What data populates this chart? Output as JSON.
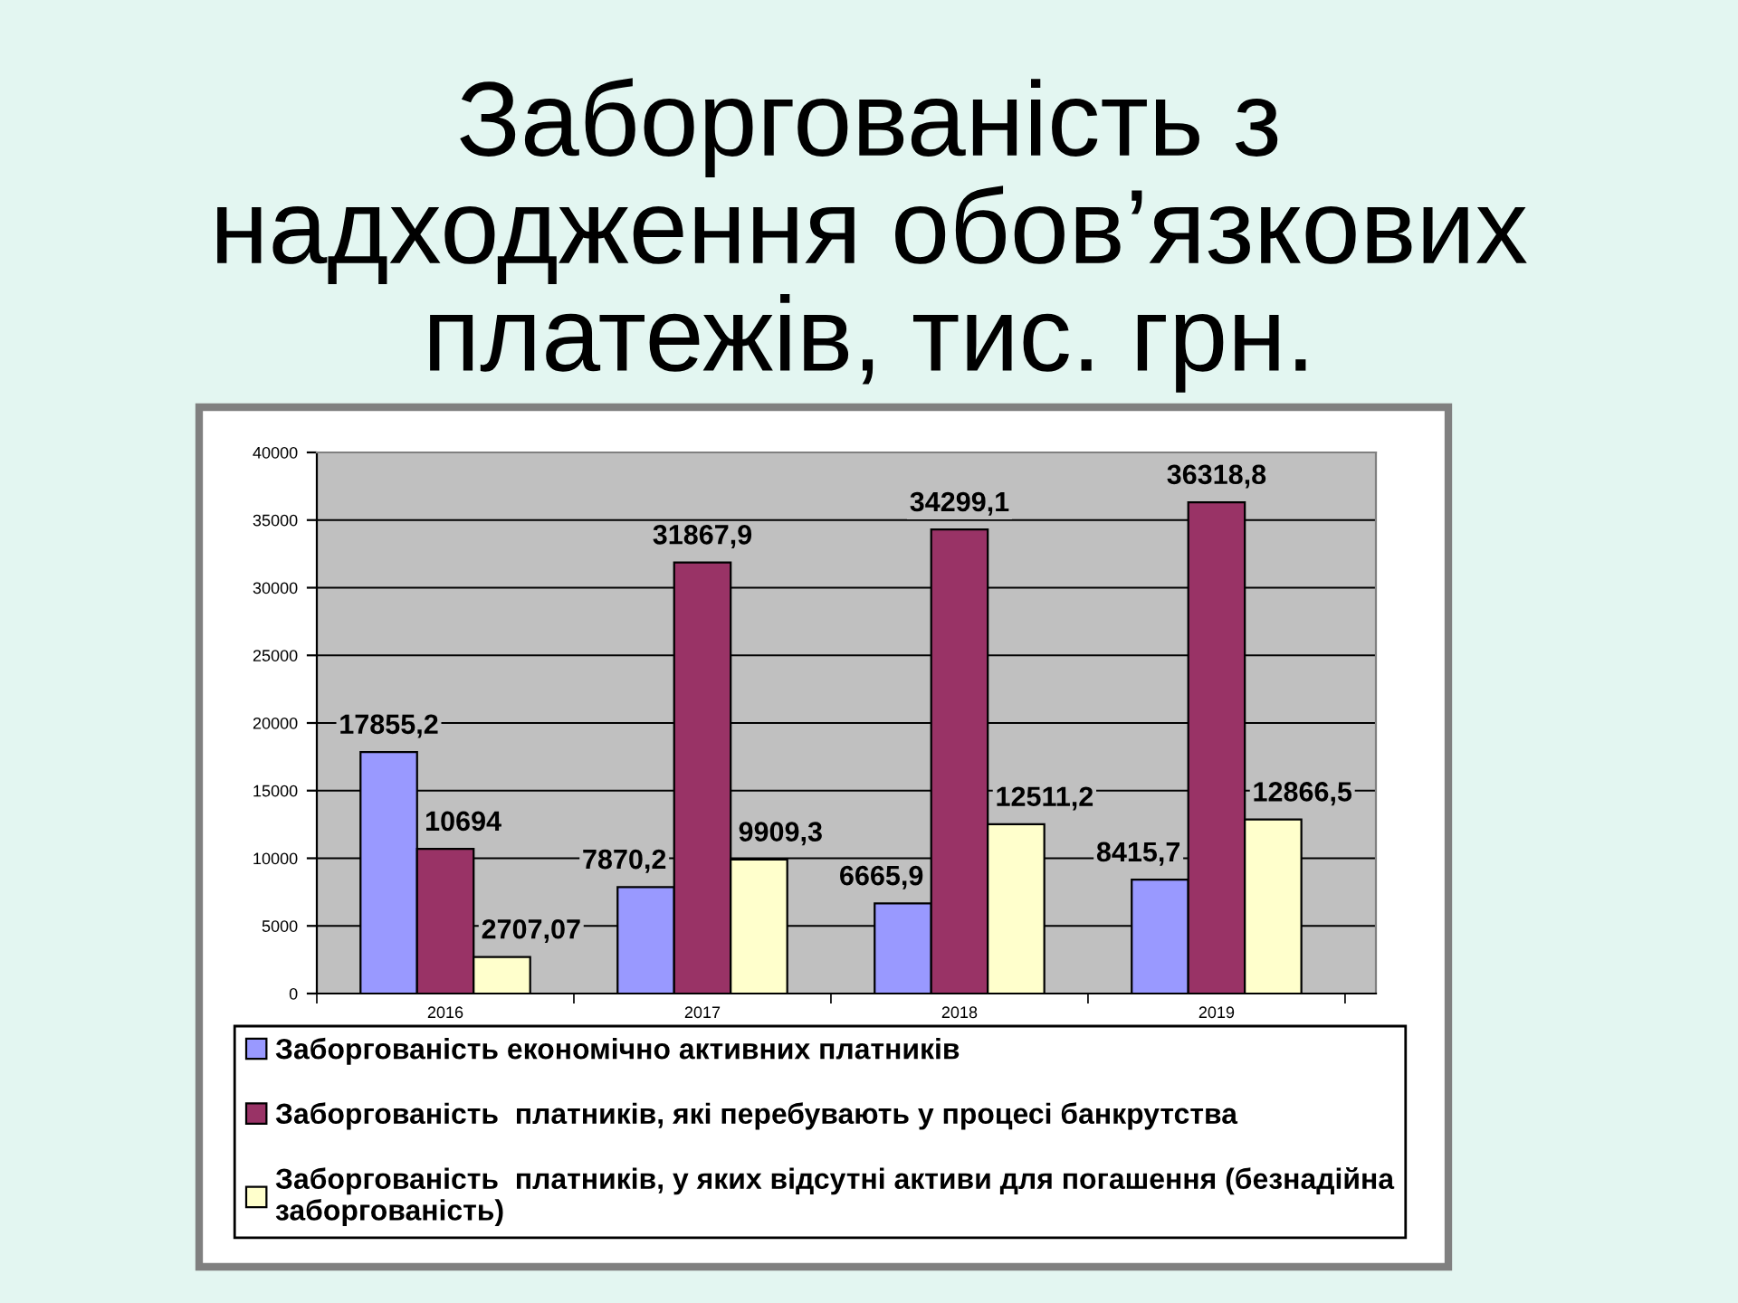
{
  "chart_data": {
    "type": "bar",
    "title": "Заборгованість з надходження обов’язкових платежів, тис. грн.",
    "categories": [
      "2016",
      "2017",
      "2018",
      "2019"
    ],
    "series": [
      {
        "name": "Заборгованість економічно активних платників",
        "color": "#9999ff",
        "values": [
          17855.2,
          7870.2,
          6665.9,
          8415.7
        ],
        "value_labels": [
          "17855,2",
          "7870,2",
          "6665,9",
          "8415,7"
        ]
      },
      {
        "name": "Заборгованість  платників, які перебувають у процесі банкрутства",
        "color": "#993366",
        "values": [
          10694,
          31867.9,
          34299.1,
          36318.8
        ],
        "value_labels": [
          "10694",
          "31867,9",
          "34299,1",
          "36318,8"
        ]
      },
      {
        "name": "Заборгованість  платників, у яких відсутні активи для погашення (безнадійна заборгованість)",
        "color": "#ffffcc",
        "values": [
          2707.07,
          9909.3,
          12511.2,
          12866.5
        ],
        "value_labels": [
          "2707,07",
          "9909,3",
          "12511,2",
          "12866,5"
        ]
      }
    ],
    "ylim": [
      0,
      40000
    ],
    "yticks": [
      0,
      5000,
      10000,
      15000,
      20000,
      25000,
      30000,
      35000,
      40000
    ],
    "grid": "y",
    "legend": "bottom"
  }
}
